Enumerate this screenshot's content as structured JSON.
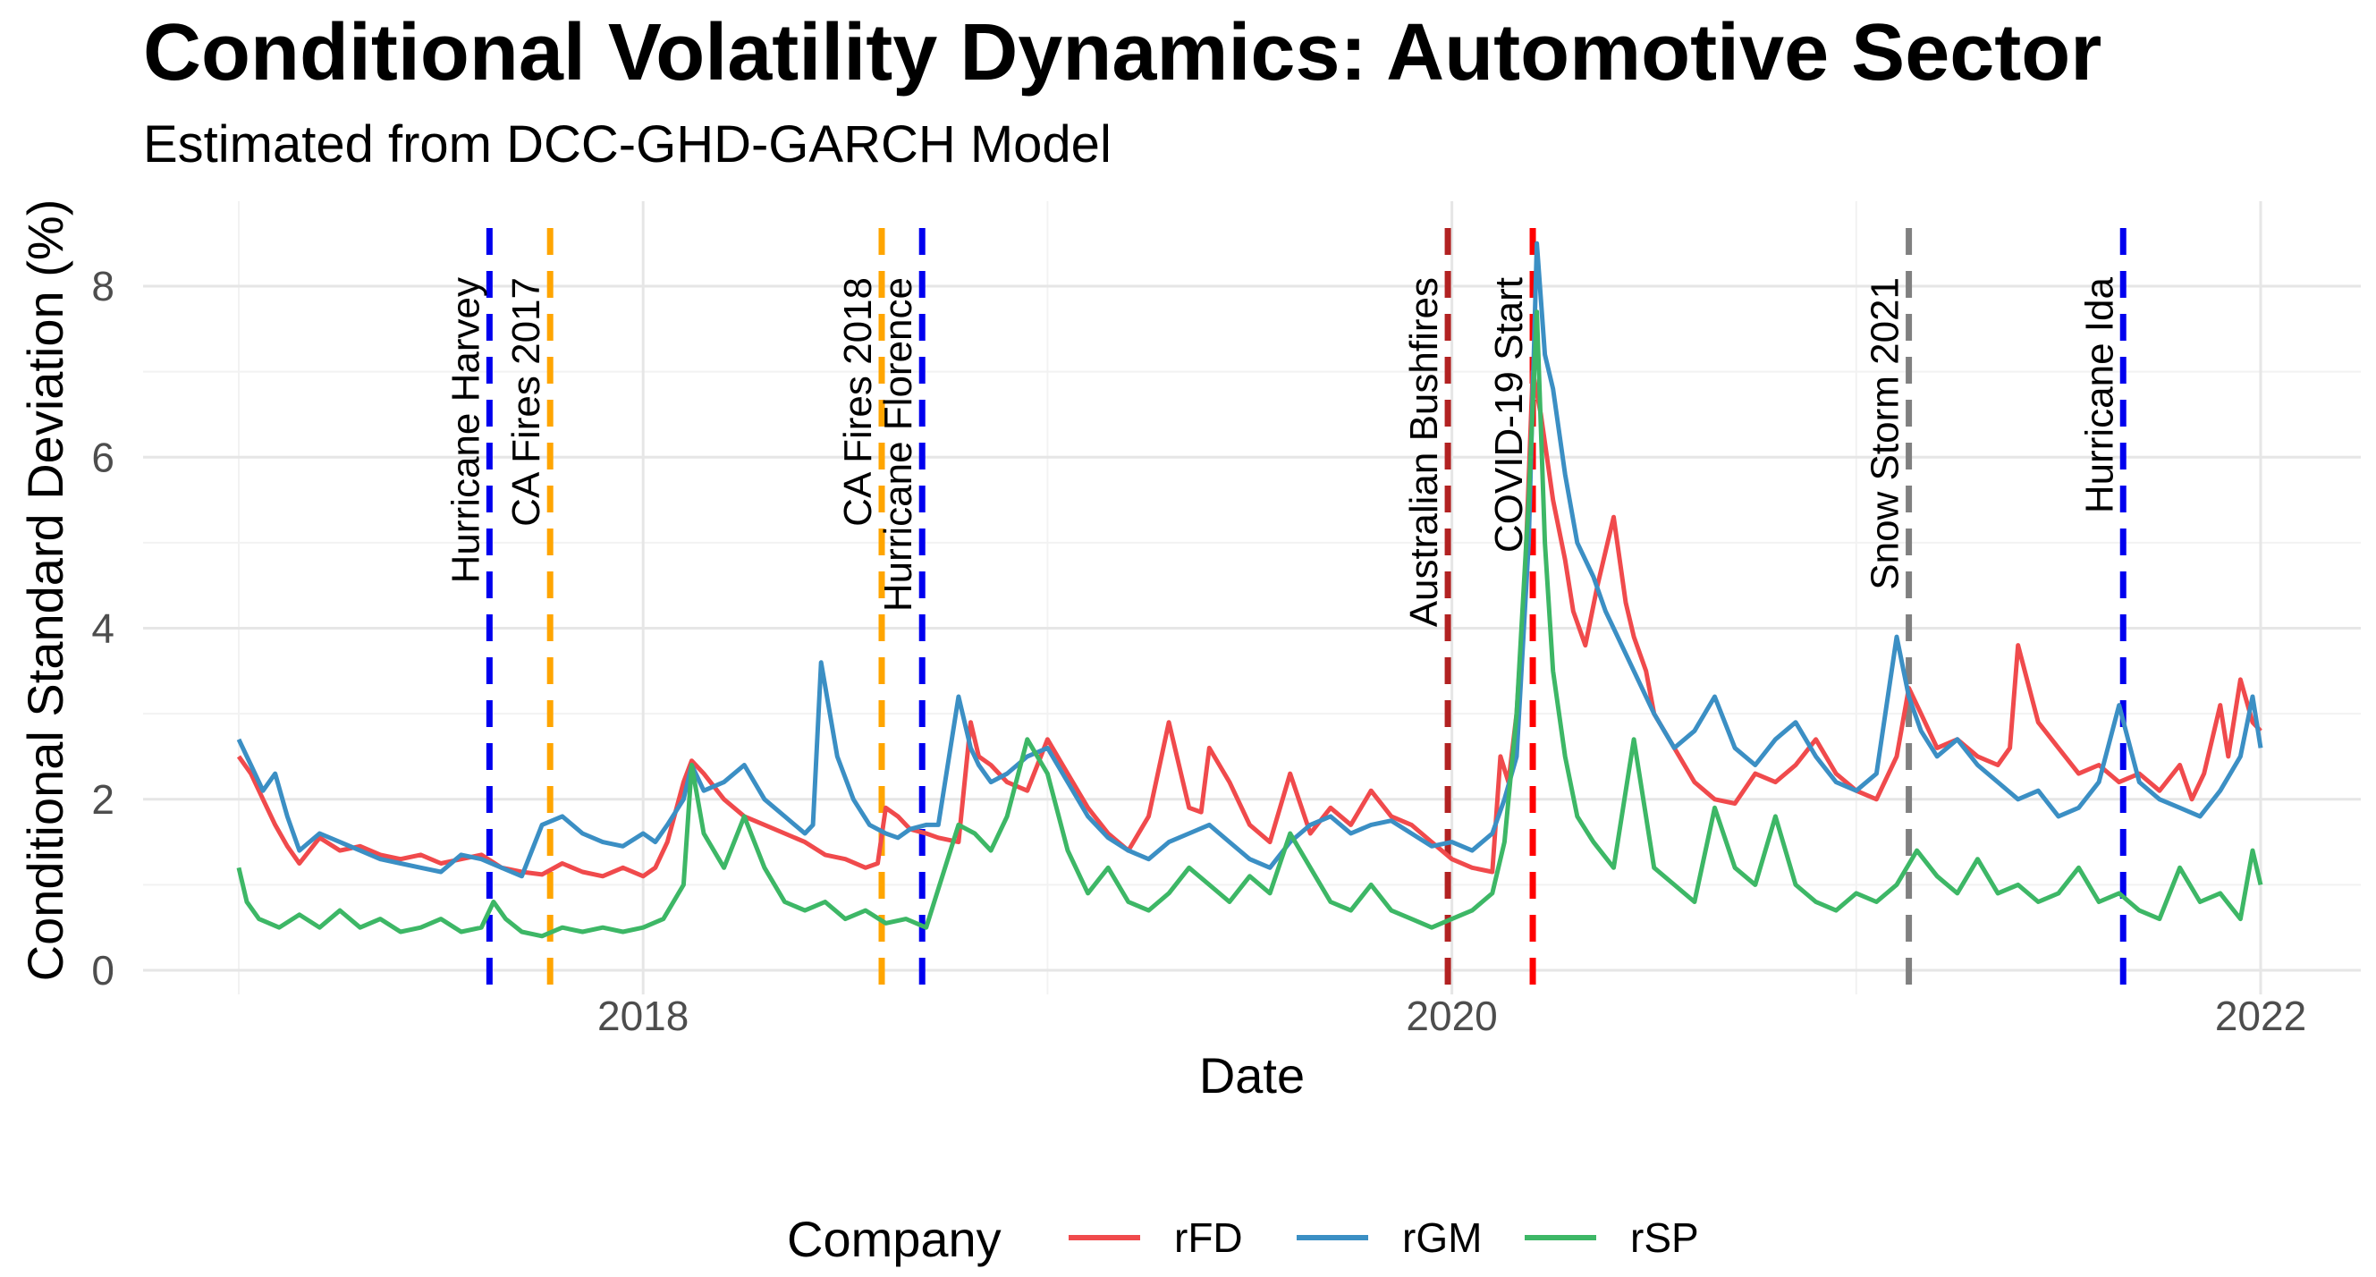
{
  "chart_data": {
    "type": "line",
    "title": "Conditional Volatility Dynamics: Automotive Sector",
    "subtitle": "Estimated from DCC-GHD-GARCH Model",
    "xlabel": "Date",
    "ylabel": "Conditional Standard Deviation (%)",
    "xlim": [
      2017.0,
      2022.0
    ],
    "ylim": [
      0,
      8.6
    ],
    "xticks": [
      {
        "value": 2018,
        "label": "2018"
      },
      {
        "value": 2020,
        "label": "2020"
      },
      {
        "value": 2022,
        "label": "2022"
      }
    ],
    "yticks": [
      {
        "value": 0,
        "label": "0"
      },
      {
        "value": 2,
        "label": "2"
      },
      {
        "value": 4,
        "label": "4"
      },
      {
        "value": 6,
        "label": "6"
      },
      {
        "value": 8,
        "label": "8"
      }
    ],
    "grid": true,
    "legend": {
      "title": "Company",
      "position": "bottom"
    },
    "events": [
      {
        "name": "Hurricane Harvey",
        "x": 2017.62,
        "color": "#0000ee"
      },
      {
        "name": "CA Fires 2017",
        "x": 2017.77,
        "color": "#ffa500"
      },
      {
        "name": "CA Fires 2018",
        "x": 2018.59,
        "color": "#ffa500"
      },
      {
        "name": "Hurricane Florence",
        "x": 2018.69,
        "color": "#0000ee"
      },
      {
        "name": "Australian Bushfires",
        "x": 2019.99,
        "color": "#b22222"
      },
      {
        "name": "COVID-19 Start",
        "x": 2020.2,
        "color": "#ff0000"
      },
      {
        "name": "Snow Storm 2021",
        "x": 2021.13,
        "color": "#808080"
      },
      {
        "name": "Hurricane Ida",
        "x": 2021.66,
        "color": "#0000ee"
      }
    ],
    "series": [
      {
        "name": "rFD",
        "color": "#f04a4c",
        "x": [
          2017.0,
          2017.03,
          2017.06,
          2017.09,
          2017.12,
          2017.15,
          2017.2,
          2017.25,
          2017.3,
          2017.35,
          2017.4,
          2017.45,
          2017.5,
          2017.55,
          2017.6,
          2017.65,
          2017.7,
          2017.75,
          2017.8,
          2017.85,
          2017.9,
          2017.95,
          2018.0,
          2018.03,
          2018.06,
          2018.1,
          2018.12,
          2018.15,
          2018.2,
          2018.25,
          2018.3,
          2018.35,
          2018.4,
          2018.45,
          2018.5,
          2018.55,
          2018.58,
          2018.6,
          2018.63,
          2018.66,
          2018.7,
          2018.73,
          2018.78,
          2018.81,
          2018.83,
          2018.86,
          2018.9,
          2018.95,
          2019.0,
          2019.05,
          2019.1,
          2019.15,
          2019.2,
          2019.25,
          2019.3,
          2019.35,
          2019.38,
          2019.4,
          2019.45,
          2019.5,
          2019.55,
          2019.6,
          2019.65,
          2019.7,
          2019.75,
          2019.8,
          2019.85,
          2019.9,
          2019.95,
          2020.0,
          2020.05,
          2020.1,
          2020.12,
          2020.14,
          2020.16,
          2020.18,
          2020.2,
          2020.22,
          2020.25,
          2020.28,
          2020.3,
          2020.33,
          2020.36,
          2020.4,
          2020.43,
          2020.45,
          2020.48,
          2020.5,
          2020.55,
          2020.6,
          2020.65,
          2020.7,
          2020.75,
          2020.8,
          2020.85,
          2020.9,
          2020.95,
          2021.0,
          2021.05,
          2021.1,
          2021.13,
          2021.16,
          2021.2,
          2021.25,
          2021.3,
          2021.35,
          2021.38,
          2021.4,
          2021.45,
          2021.5,
          2021.55,
          2021.6,
          2021.65,
          2021.7,
          2021.75,
          2021.8,
          2021.83,
          2021.86,
          2021.9,
          2021.92,
          2021.95,
          2021.98,
          2022.0
        ],
        "y": [
          2.5,
          2.3,
          2.0,
          1.7,
          1.45,
          1.25,
          1.55,
          1.4,
          1.45,
          1.35,
          1.3,
          1.35,
          1.25,
          1.3,
          1.35,
          1.2,
          1.15,
          1.12,
          1.25,
          1.15,
          1.1,
          1.2,
          1.1,
          1.2,
          1.5,
          2.2,
          2.45,
          2.3,
          2.0,
          1.8,
          1.7,
          1.6,
          1.5,
          1.35,
          1.3,
          1.2,
          1.25,
          1.9,
          1.8,
          1.65,
          1.6,
          1.55,
          1.5,
          2.9,
          2.5,
          2.4,
          2.2,
          2.1,
          2.7,
          2.3,
          1.9,
          1.6,
          1.4,
          1.8,
          2.9,
          1.9,
          1.85,
          2.6,
          2.2,
          1.7,
          1.5,
          2.3,
          1.6,
          1.9,
          1.7,
          2.1,
          1.8,
          1.7,
          1.5,
          1.3,
          1.2,
          1.15,
          2.5,
          2.2,
          3.0,
          4.5,
          7.0,
          6.5,
          5.5,
          4.8,
          4.2,
          3.8,
          4.5,
          5.3,
          4.3,
          3.9,
          3.5,
          3.0,
          2.6,
          2.2,
          2.0,
          1.95,
          2.3,
          2.2,
          2.4,
          2.7,
          2.3,
          2.1,
          2.0,
          2.5,
          3.3,
          3.0,
          2.6,
          2.7,
          2.5,
          2.4,
          2.6,
          3.8,
          2.9,
          2.6,
          2.3,
          2.4,
          2.2,
          2.3,
          2.1,
          2.4,
          2.0,
          2.3,
          3.1,
          2.5,
          3.4,
          2.9,
          2.8
        ]
      },
      {
        "name": "rGM",
        "color": "#3b8fc4",
        "x": [
          2017.0,
          2017.03,
          2017.06,
          2017.09,
          2017.12,
          2017.15,
          2017.2,
          2017.25,
          2017.3,
          2017.35,
          2017.4,
          2017.45,
          2017.5,
          2017.55,
          2017.6,
          2017.65,
          2017.7,
          2017.75,
          2017.8,
          2017.85,
          2017.9,
          2017.95,
          2018.0,
          2018.03,
          2018.06,
          2018.1,
          2018.12,
          2018.15,
          2018.2,
          2018.25,
          2018.3,
          2018.35,
          2018.4,
          2018.42,
          2018.44,
          2018.48,
          2018.52,
          2018.56,
          2018.6,
          2018.63,
          2018.66,
          2018.7,
          2018.73,
          2018.78,
          2018.81,
          2018.83,
          2018.86,
          2018.9,
          2018.95,
          2019.0,
          2019.05,
          2019.1,
          2019.15,
          2019.2,
          2019.25,
          2019.3,
          2019.35,
          2019.4,
          2019.45,
          2019.5,
          2019.55,
          2019.6,
          2019.65,
          2019.7,
          2019.75,
          2019.8,
          2019.85,
          2019.9,
          2019.95,
          2020.0,
          2020.05,
          2020.1,
          2020.13,
          2020.16,
          2020.19,
          2020.21,
          2020.23,
          2020.25,
          2020.28,
          2020.31,
          2020.35,
          2020.38,
          2020.42,
          2020.45,
          2020.5,
          2020.55,
          2020.6,
          2020.65,
          2020.7,
          2020.75,
          2020.8,
          2020.85,
          2020.9,
          2020.95,
          2021.0,
          2021.05,
          2021.1,
          2021.13,
          2021.16,
          2021.2,
          2021.25,
          2021.3,
          2021.35,
          2021.4,
          2021.45,
          2021.5,
          2021.55,
          2021.6,
          2021.65,
          2021.7,
          2021.75,
          2021.8,
          2021.85,
          2021.9,
          2021.95,
          2021.98,
          2022.0
        ],
        "y": [
          2.7,
          2.4,
          2.1,
          2.3,
          1.8,
          1.4,
          1.6,
          1.5,
          1.4,
          1.3,
          1.25,
          1.2,
          1.15,
          1.35,
          1.3,
          1.2,
          1.1,
          1.7,
          1.8,
          1.6,
          1.5,
          1.45,
          1.6,
          1.5,
          1.7,
          2.0,
          2.4,
          2.1,
          2.2,
          2.4,
          2.0,
          1.8,
          1.6,
          1.7,
          3.6,
          2.5,
          2.0,
          1.7,
          1.6,
          1.55,
          1.65,
          1.7,
          1.7,
          3.2,
          2.6,
          2.4,
          2.2,
          2.3,
          2.5,
          2.6,
          2.2,
          1.8,
          1.55,
          1.4,
          1.3,
          1.5,
          1.6,
          1.7,
          1.5,
          1.3,
          1.2,
          1.5,
          1.7,
          1.8,
          1.6,
          1.7,
          1.75,
          1.6,
          1.45,
          1.5,
          1.4,
          1.6,
          2.0,
          2.5,
          5.0,
          8.5,
          7.2,
          6.8,
          5.8,
          5.0,
          4.6,
          4.2,
          3.8,
          3.5,
          3.0,
          2.6,
          2.8,
          3.2,
          2.6,
          2.4,
          2.7,
          2.9,
          2.5,
          2.2,
          2.1,
          2.3,
          3.9,
          3.2,
          2.8,
          2.5,
          2.7,
          2.4,
          2.2,
          2.0,
          2.1,
          1.8,
          1.9,
          2.2,
          3.1,
          2.2,
          2.0,
          1.9,
          1.8,
          2.1,
          2.5,
          3.2,
          2.6
        ]
      },
      {
        "name": "rSP",
        "color": "#3db766",
        "x": [
          2017.0,
          2017.02,
          2017.05,
          2017.1,
          2017.15,
          2017.2,
          2017.25,
          2017.3,
          2017.35,
          2017.4,
          2017.45,
          2017.5,
          2017.55,
          2017.6,
          2017.63,
          2017.66,
          2017.7,
          2017.75,
          2017.8,
          2017.85,
          2017.9,
          2017.95,
          2018.0,
          2018.05,
          2018.1,
          2018.12,
          2018.15,
          2018.2,
          2018.25,
          2018.3,
          2018.35,
          2018.4,
          2018.45,
          2018.5,
          2018.55,
          2018.6,
          2018.65,
          2018.7,
          2018.78,
          2018.82,
          2018.86,
          2018.9,
          2018.95,
          2019.0,
          2019.05,
          2019.1,
          2019.15,
          2019.2,
          2019.25,
          2019.3,
          2019.35,
          2019.4,
          2019.45,
          2019.5,
          2019.55,
          2019.6,
          2019.65,
          2019.7,
          2019.75,
          2019.8,
          2019.85,
          2019.9,
          2019.95,
          2020.0,
          2020.05,
          2020.1,
          2020.13,
          2020.16,
          2020.19,
          2020.21,
          2020.23,
          2020.25,
          2020.28,
          2020.31,
          2020.35,
          2020.4,
          2020.45,
          2020.5,
          2020.55,
          2020.6,
          2020.65,
          2020.7,
          2020.75,
          2020.8,
          2020.85,
          2020.9,
          2020.95,
          2021.0,
          2021.05,
          2021.1,
          2021.15,
          2021.2,
          2021.25,
          2021.3,
          2021.35,
          2021.4,
          2021.45,
          2021.5,
          2021.55,
          2021.6,
          2021.65,
          2021.7,
          2021.75,
          2021.8,
          2021.85,
          2021.9,
          2021.95,
          2021.98,
          2022.0
        ],
        "y": [
          1.2,
          0.8,
          0.6,
          0.5,
          0.65,
          0.5,
          0.7,
          0.5,
          0.6,
          0.45,
          0.5,
          0.6,
          0.45,
          0.5,
          0.8,
          0.6,
          0.45,
          0.4,
          0.5,
          0.45,
          0.5,
          0.45,
          0.5,
          0.6,
          1.0,
          2.4,
          1.6,
          1.2,
          1.8,
          1.2,
          0.8,
          0.7,
          0.8,
          0.6,
          0.7,
          0.55,
          0.6,
          0.5,
          1.7,
          1.6,
          1.4,
          1.8,
          2.7,
          2.3,
          1.4,
          0.9,
          1.2,
          0.8,
          0.7,
          0.9,
          1.2,
          1.0,
          0.8,
          1.1,
          0.9,
          1.6,
          1.2,
          0.8,
          0.7,
          1.0,
          0.7,
          0.6,
          0.5,
          0.6,
          0.7,
          0.9,
          1.5,
          3.0,
          5.5,
          7.7,
          5.0,
          3.5,
          2.5,
          1.8,
          1.5,
          1.2,
          2.7,
          1.2,
          1.0,
          0.8,
          1.9,
          1.2,
          1.0,
          1.8,
          1.0,
          0.8,
          0.7,
          0.9,
          0.8,
          1.0,
          1.4,
          1.1,
          0.9,
          1.3,
          0.9,
          1.0,
          0.8,
          0.9,
          1.2,
          0.8,
          0.9,
          0.7,
          0.6,
          1.2,
          0.8,
          0.9,
          0.6,
          1.4,
          1.0
        ]
      }
    ]
  }
}
